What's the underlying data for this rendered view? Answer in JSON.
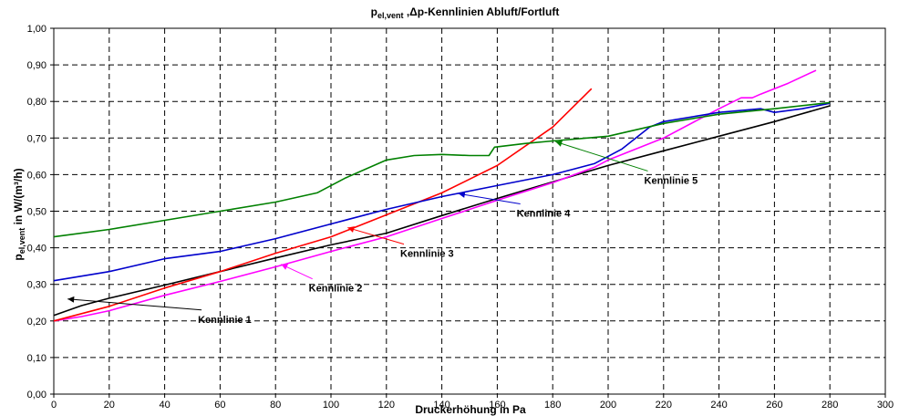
{
  "chart_data": {
    "type": "line",
    "title": {
      "main": "p",
      "sub": "el,vent",
      "rest": " ,Δp-Kennlinien Abluft/Fortluft"
    },
    "xlabel": "Druckerhöhung in Pa",
    "ylabel": {
      "main": "p",
      "sub": "el,vent",
      "rest": " in W/(m³/h)"
    },
    "xlim": [
      0,
      300
    ],
    "ylim": [
      0,
      1.0
    ],
    "xticks": [
      0,
      20,
      40,
      60,
      80,
      100,
      120,
      140,
      160,
      180,
      200,
      220,
      240,
      260,
      280,
      300
    ],
    "yticks": [
      0.0,
      0.1,
      0.2,
      0.3,
      0.4,
      0.5,
      0.6,
      0.7,
      0.8,
      0.9,
      1.0
    ],
    "xtick_labels": [
      "0",
      "20",
      "40",
      "60",
      "80",
      "100",
      "120",
      "140",
      "160",
      "180",
      "200",
      "220",
      "240",
      "260",
      "280",
      "300"
    ],
    "ytick_labels": [
      "0,00",
      "0,10",
      "0,20",
      "0,30",
      "0,40",
      "0,50",
      "0,60",
      "0,70",
      "0,80",
      "0,90",
      "1,00"
    ],
    "grid": true,
    "series": [
      {
        "id": "k1",
        "color": "#000000",
        "points": [
          [
            0,
            0.215
          ],
          [
            10,
            0.242
          ],
          [
            20,
            0.262
          ],
          [
            40,
            0.298
          ],
          [
            60,
            0.335
          ],
          [
            80,
            0.372
          ],
          [
            100,
            0.408
          ],
          [
            120,
            0.44
          ],
          [
            140,
            0.488
          ],
          [
            160,
            0.535
          ],
          [
            180,
            0.58
          ],
          [
            200,
            0.625
          ],
          [
            220,
            0.665
          ],
          [
            240,
            0.705
          ],
          [
            260,
            0.745
          ],
          [
            280,
            0.788
          ]
        ]
      },
      {
        "id": "k2",
        "color": "#ff00ff",
        "points": [
          [
            0,
            0.2
          ],
          [
            10,
            0.212
          ],
          [
            20,
            0.228
          ],
          [
            40,
            0.27
          ],
          [
            60,
            0.308
          ],
          [
            80,
            0.348
          ],
          [
            100,
            0.39
          ],
          [
            120,
            0.43
          ],
          [
            140,
            0.48
          ],
          [
            160,
            0.53
          ],
          [
            180,
            0.578
          ],
          [
            195,
            0.62
          ],
          [
            200,
            0.64
          ],
          [
            220,
            0.7
          ],
          [
            240,
            0.78
          ],
          [
            248,
            0.81
          ],
          [
            252,
            0.81
          ],
          [
            255,
            0.82
          ],
          [
            265,
            0.85
          ],
          [
            275,
            0.885
          ]
        ]
      },
      {
        "id": "k3",
        "color": "#ff0000",
        "points": [
          [
            0,
            0.2
          ],
          [
            20,
            0.24
          ],
          [
            40,
            0.29
          ],
          [
            60,
            0.335
          ],
          [
            80,
            0.385
          ],
          [
            100,
            0.43
          ],
          [
            120,
            0.49
          ],
          [
            140,
            0.55
          ],
          [
            160,
            0.625
          ],
          [
            180,
            0.73
          ],
          [
            194,
            0.835
          ]
        ]
      },
      {
        "id": "k4",
        "color": "#0000cc",
        "points": [
          [
            0,
            0.31
          ],
          [
            20,
            0.335
          ],
          [
            40,
            0.37
          ],
          [
            60,
            0.39
          ],
          [
            80,
            0.425
          ],
          [
            100,
            0.465
          ],
          [
            120,
            0.505
          ],
          [
            140,
            0.54
          ],
          [
            160,
            0.57
          ],
          [
            180,
            0.6
          ],
          [
            195,
            0.63
          ],
          [
            205,
            0.67
          ],
          [
            215,
            0.73
          ],
          [
            220,
            0.745
          ],
          [
            240,
            0.77
          ],
          [
            255,
            0.78
          ],
          [
            260,
            0.77
          ],
          [
            270,
            0.78
          ],
          [
            280,
            0.795
          ]
        ]
      },
      {
        "id": "k5",
        "color": "#008000",
        "points": [
          [
            0,
            0.43
          ],
          [
            20,
            0.45
          ],
          [
            40,
            0.475
          ],
          [
            60,
            0.5
          ],
          [
            80,
            0.525
          ],
          [
            95,
            0.55
          ],
          [
            105,
            0.59
          ],
          [
            120,
            0.64
          ],
          [
            130,
            0.652
          ],
          [
            140,
            0.655
          ],
          [
            150,
            0.652
          ],
          [
            157,
            0.652
          ],
          [
            159,
            0.675
          ],
          [
            170,
            0.685
          ],
          [
            180,
            0.692
          ],
          [
            200,
            0.705
          ],
          [
            220,
            0.74
          ],
          [
            240,
            0.765
          ],
          [
            260,
            0.78
          ],
          [
            280,
            0.797
          ]
        ]
      }
    ],
    "annotations": [
      {
        "text": "Kennlinie 1",
        "label_at": [
          52,
          0.205
        ],
        "tip": [
          5,
          0.26
        ],
        "color": "#000000"
      },
      {
        "text": "Kennlinie 2",
        "label_at": [
          92,
          0.29
        ],
        "tip": [
          82,
          0.355
        ],
        "color": "#ff00ff"
      },
      {
        "text": "Kennlinie 3",
        "label_at": [
          125,
          0.385
        ],
        "tip": [
          106,
          0.455
        ],
        "color": "#ff0000"
      },
      {
        "text": "Kennlinie 4",
        "label_at": [
          167,
          0.495
        ],
        "tip": [
          146,
          0.548
        ],
        "color": "#0000cc"
      },
      {
        "text": "Kennlinie 5",
        "label_at": [
          213,
          0.585
        ],
        "tip": [
          181,
          0.69
        ],
        "color": "#008000"
      }
    ]
  }
}
